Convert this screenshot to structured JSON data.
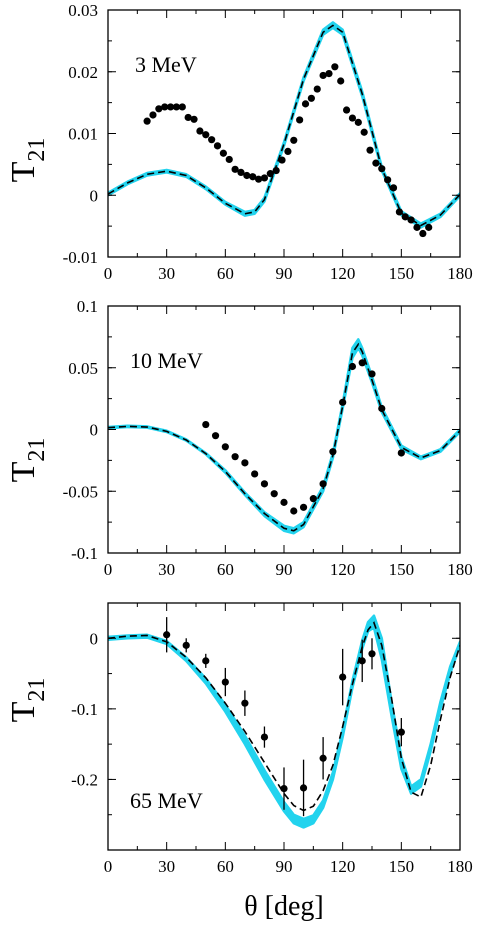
{
  "chart_data": [
    {
      "type": "line",
      "annotation": "3 MeV",
      "ylabel": "T",
      "ylabel_sub": "21",
      "xlim": [
        0,
        180
      ],
      "ylim": [
        -0.01,
        0.03
      ],
      "xticks": [
        0,
        30,
        60,
        90,
        120,
        150,
        180
      ],
      "xtick_labels": [
        "0",
        "30",
        "60",
        "90",
        "120",
        "150",
        "180"
      ],
      "yticks": [
        -0.01,
        0,
        0.01,
        0.02,
        0.03
      ],
      "ytick_labels": [
        "-0.01",
        "0",
        "0.01",
        "0.02",
        "0.03"
      ],
      "band": {
        "color": "#22D3EE",
        "x": [
          0,
          10,
          20,
          30,
          40,
          50,
          60,
          70,
          75,
          80,
          90,
          100,
          110,
          115,
          120,
          130,
          140,
          150,
          160,
          170,
          180
        ],
        "lower": [
          0.0,
          0.0018,
          0.0032,
          0.0037,
          0.003,
          0.001,
          -0.0015,
          -0.0033,
          -0.003,
          -0.001,
          0.008,
          0.0185,
          0.026,
          0.0271,
          0.026,
          0.016,
          0.004,
          -0.0032,
          -0.0052,
          -0.0035,
          -0.0001
        ],
        "upper": [
          0.0004,
          0.0022,
          0.0036,
          0.0041,
          0.0034,
          0.0014,
          -0.0011,
          -0.0027,
          -0.0024,
          -0.0004,
          0.0086,
          0.0191,
          0.0268,
          0.028,
          0.0268,
          0.0168,
          0.0046,
          -0.0026,
          -0.0046,
          -0.003,
          0.0003
        ]
      },
      "series": [
        {
          "style": "dashed",
          "x": [
            0,
            10,
            20,
            30,
            40,
            50,
            60,
            70,
            75,
            80,
            90,
            100,
            110,
            115,
            120,
            130,
            140,
            150,
            160,
            170,
            180
          ],
          "y": [
            0.0002,
            0.002,
            0.0034,
            0.0039,
            0.0032,
            0.0012,
            -0.0013,
            -0.003,
            -0.0027,
            -0.0007,
            0.0083,
            0.0188,
            0.0264,
            0.0275,
            0.0264,
            0.0164,
            0.0043,
            -0.0029,
            -0.0049,
            -0.0032,
            0.0001
          ]
        }
      ],
      "points": {
        "x": [
          20,
          23,
          26,
          29,
          32,
          35,
          38,
          41,
          44,
          47,
          50,
          53,
          56,
          59,
          62,
          65,
          68,
          71,
          74,
          77,
          80,
          83,
          86,
          89,
          92,
          95,
          98,
          101,
          104,
          107,
          110,
          113,
          116,
          119,
          122,
          125,
          128,
          131,
          134,
          137,
          140,
          143,
          146,
          149,
          152,
          155,
          158,
          161,
          164
        ],
        "y": [
          0.012,
          0.013,
          0.014,
          0.0143,
          0.0143,
          0.0143,
          0.0143,
          0.0126,
          0.0123,
          0.0104,
          0.0098,
          0.009,
          0.008,
          0.0068,
          0.0058,
          0.0042,
          0.0037,
          0.0032,
          0.003,
          0.0026,
          0.0028,
          0.0035,
          0.004,
          0.0057,
          0.0071,
          0.0089,
          0.0122,
          0.0148,
          0.0157,
          0.0172,
          0.0194,
          0.0197,
          0.0208,
          0.0185,
          0.0138,
          0.0125,
          0.0118,
          0.0102,
          0.0073,
          0.0052,
          0.0043,
          0.0025,
          0.0012,
          -0.0027,
          -0.0035,
          -0.004,
          -0.0052,
          -0.0062,
          -0.0052
        ]
      }
    },
    {
      "type": "line",
      "annotation": "10 MeV",
      "ylabel": "T",
      "ylabel_sub": "21",
      "xlim": [
        0,
        180
      ],
      "ylim": [
        -0.1,
        0.1
      ],
      "xticks": [
        0,
        30,
        60,
        90,
        120,
        150,
        180
      ],
      "xtick_labels": [
        "0",
        "30",
        "60",
        "90",
        "120",
        "150",
        "180"
      ],
      "yticks": [
        -0.1,
        -0.05,
        0,
        0.05,
        0.1
      ],
      "ytick_labels": [
        "-0.1",
        "-0.05",
        "0",
        "0.05",
        "0.1"
      ],
      "band": {
        "color": "#22D3EE",
        "x": [
          0,
          10,
          20,
          30,
          40,
          50,
          60,
          70,
          80,
          90,
          95,
          100,
          110,
          115,
          120,
          125,
          128,
          130,
          135,
          140,
          150,
          160,
          170,
          180
        ],
        "lower": [
          0.001,
          0.002,
          0.0015,
          -0.002,
          -0.009,
          -0.02,
          -0.035,
          -0.053,
          -0.07,
          -0.082,
          -0.084,
          -0.079,
          -0.05,
          -0.023,
          0.017,
          0.058,
          0.066,
          0.06,
          0.038,
          0.014,
          -0.016,
          -0.024,
          -0.018,
          -0.002
        ],
        "upper": [
          0.002,
          0.003,
          0.0025,
          -0.001,
          -0.008,
          -0.019,
          -0.033,
          -0.051,
          -0.067,
          -0.078,
          -0.08,
          -0.075,
          -0.046,
          -0.019,
          0.021,
          0.066,
          0.073,
          0.066,
          0.043,
          0.018,
          -0.013,
          -0.022,
          -0.016,
          0.0
        ]
      },
      "series": [
        {
          "style": "dashed",
          "x": [
            0,
            10,
            20,
            30,
            40,
            50,
            60,
            70,
            80,
            90,
            95,
            100,
            110,
            115,
            120,
            125,
            128,
            130,
            135,
            140,
            150,
            160,
            170,
            180
          ],
          "y": [
            0.0015,
            0.0025,
            0.002,
            -0.0015,
            -0.0085,
            -0.0195,
            -0.034,
            -0.052,
            -0.068,
            -0.08,
            -0.082,
            -0.077,
            -0.048,
            -0.021,
            0.019,
            0.062,
            0.069,
            0.063,
            0.04,
            0.016,
            -0.0145,
            -0.023,
            -0.017,
            -0.001
          ]
        }
      ],
      "points": {
        "x": [
          50,
          55,
          60,
          65,
          70,
          75,
          80,
          85,
          90,
          95,
          100,
          105,
          110,
          115,
          120,
          125,
          130,
          135,
          140,
          150
        ],
        "y": [
          0.004,
          -0.005,
          -0.014,
          -0.022,
          -0.027,
          -0.036,
          -0.044,
          -0.052,
          -0.059,
          -0.066,
          -0.063,
          -0.056,
          -0.044,
          -0.018,
          0.022,
          0.051,
          0.054,
          0.045,
          0.017,
          -0.019
        ]
      }
    },
    {
      "type": "line",
      "annotation": "65 MeV",
      "ylabel": "T",
      "ylabel_sub": "21",
      "xlabel": "θ  [deg]",
      "xlim": [
        0,
        180
      ],
      "ylim": [
        -0.3,
        0.05
      ],
      "xticks": [
        0,
        30,
        60,
        90,
        120,
        150,
        180
      ],
      "xtick_labels": [
        "0",
        "30",
        "60",
        "90",
        "120",
        "150",
        "180"
      ],
      "yticks": [
        -0.2,
        -0.1,
        0
      ],
      "ytick_labels": [
        "-0.2",
        "-0.1",
        "0"
      ],
      "band": {
        "color": "#22D3EE",
        "x": [
          0,
          10,
          20,
          30,
          40,
          50,
          60,
          70,
          80,
          90,
          95,
          100,
          105,
          110,
          115,
          120,
          125,
          130,
          133,
          136,
          140,
          145,
          150,
          155,
          160,
          165,
          170,
          175,
          180
        ],
        "lower": [
          -0.002,
          0.0,
          0.001,
          -0.008,
          -0.032,
          -0.064,
          -0.104,
          -0.15,
          -0.2,
          -0.245,
          -0.262,
          -0.268,
          -0.262,
          -0.24,
          -0.2,
          -0.14,
          -0.07,
          -0.015,
          0.01,
          0.015,
          -0.03,
          -0.11,
          -0.185,
          -0.22,
          -0.21,
          -0.16,
          -0.1,
          -0.05,
          -0.01
        ],
        "upper": [
          0.002,
          0.004,
          0.005,
          -0.004,
          -0.027,
          -0.057,
          -0.094,
          -0.138,
          -0.187,
          -0.232,
          -0.25,
          -0.256,
          -0.251,
          -0.23,
          -0.19,
          -0.13,
          -0.06,
          -0.003,
          0.023,
          0.032,
          0.0,
          -0.09,
          -0.168,
          -0.21,
          -0.2,
          -0.15,
          -0.09,
          -0.04,
          -0.005
        ]
      },
      "series": [
        {
          "style": "dashed",
          "x": [
            0,
            10,
            20,
            30,
            40,
            50,
            60,
            70,
            80,
            90,
            95,
            100,
            105,
            110,
            115,
            120,
            125,
            130,
            133,
            136,
            140,
            145,
            150,
            155,
            160,
            165,
            170,
            175,
            180
          ],
          "y": [
            0.0,
            0.003,
            0.004,
            -0.005,
            -0.027,
            -0.056,
            -0.092,
            -0.132,
            -0.176,
            -0.22,
            -0.237,
            -0.244,
            -0.238,
            -0.216,
            -0.18,
            -0.125,
            -0.065,
            -0.012,
            0.012,
            0.022,
            -0.01,
            -0.085,
            -0.17,
            -0.218,
            -0.225,
            -0.18,
            -0.115,
            -0.055,
            -0.01
          ]
        }
      ],
      "points": {
        "x": [
          30,
          40,
          50,
          60,
          70,
          80,
          90,
          100,
          110,
          120,
          130,
          135,
          150
        ],
        "y": [
          0.005,
          -0.01,
          -0.032,
          -0.062,
          -0.092,
          -0.14,
          -0.213,
          -0.212,
          -0.17,
          -0.055,
          -0.032,
          -0.022,
          -0.133
        ],
        "err": [
          0.025,
          0.01,
          0.01,
          0.02,
          0.018,
          0.015,
          0.03,
          0.04,
          0.03,
          0.04,
          0.03,
          0.022,
          0.02
        ]
      }
    }
  ]
}
